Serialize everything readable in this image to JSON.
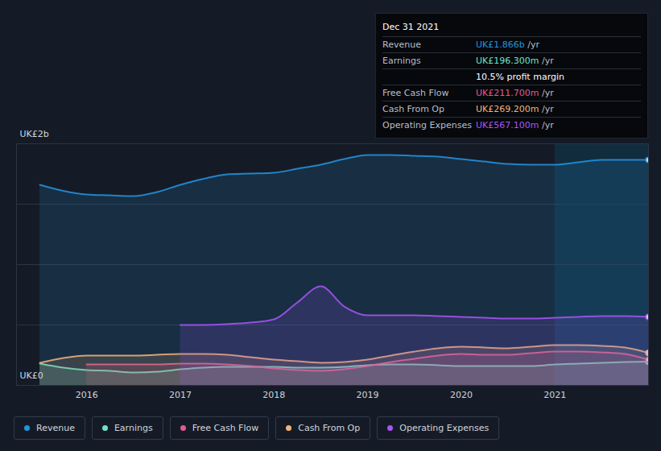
{
  "chart_data": {
    "type": "line",
    "x": [
      2015.5,
      2015.75,
      2016,
      2016.25,
      2016.5,
      2016.75,
      2017,
      2017.25,
      2017.5,
      2017.75,
      2018,
      2018.25,
      2018.5,
      2018.75,
      2019,
      2019.25,
      2019.5,
      2019.75,
      2020,
      2020.25,
      2020.5,
      2020.75,
      2021,
      2021.25,
      2021.5,
      2021.75,
      2022
    ],
    "xlim": [
      2015.25,
      2022
    ],
    "xticks": [
      2016,
      2017,
      2018,
      2019,
      2020,
      2021
    ],
    "ylim": [
      0,
      2
    ],
    "yticks": [
      {
        "value": 0,
        "label": "UK£0"
      },
      {
        "value": 0.5,
        "label": null
      },
      {
        "value": 1,
        "label": null
      },
      {
        "value": 1.5,
        "label": null
      },
      {
        "value": 2,
        "label": "UK£2b"
      }
    ],
    "grid": true,
    "series": [
      {
        "name": "Revenue",
        "color": "#2394df",
        "values": [
          1.66,
          1.61,
          1.58,
          1.573,
          1.567,
          1.6,
          1.66,
          1.71,
          1.747,
          1.753,
          1.76,
          1.793,
          1.827,
          1.873,
          1.907,
          1.907,
          1.9,
          1.893,
          1.873,
          1.853,
          1.833,
          1.827,
          1.827,
          1.847,
          1.867,
          1.867,
          1.866
        ]
      },
      {
        "name": "Earnings",
        "color": "#6fe3c7",
        "values": [
          0.18,
          0.147,
          0.127,
          0.12,
          0.107,
          0.113,
          0.133,
          0.147,
          0.153,
          0.153,
          0.153,
          0.147,
          0.147,
          0.153,
          0.167,
          0.173,
          0.173,
          0.167,
          0.16,
          0.16,
          0.16,
          0.16,
          0.173,
          0.18,
          0.187,
          0.193,
          0.1963
        ]
      },
      {
        "name": "Free Cash Flow",
        "color": "#e05b8f",
        "values": [
          null,
          null,
          0.173,
          0.173,
          0.173,
          0.173,
          0.18,
          0.18,
          0.173,
          0.16,
          0.14,
          0.127,
          0.12,
          0.133,
          0.16,
          0.193,
          0.22,
          0.247,
          0.26,
          0.253,
          0.253,
          0.267,
          0.28,
          0.28,
          0.273,
          0.26,
          0.2117
        ]
      },
      {
        "name": "Cash From Op",
        "color": "#f0b37a",
        "values": [
          0.187,
          0.227,
          0.247,
          0.247,
          0.247,
          0.253,
          0.26,
          0.26,
          0.253,
          0.233,
          0.213,
          0.2,
          0.187,
          0.193,
          0.213,
          0.247,
          0.28,
          0.307,
          0.32,
          0.313,
          0.307,
          0.32,
          0.333,
          0.333,
          0.327,
          0.313,
          0.2692
        ]
      },
      {
        "name": "Operating Expenses",
        "color": "#a855f7",
        "values": [
          null,
          null,
          null,
          null,
          null,
          null,
          0.5,
          0.5,
          0.507,
          0.52,
          0.547,
          0.687,
          0.82,
          0.653,
          0.58,
          0.58,
          0.58,
          0.573,
          0.567,
          0.56,
          0.553,
          0.553,
          0.56,
          0.567,
          0.573,
          0.573,
          0.5671
        ]
      }
    ],
    "legend": "bottom",
    "annotation": {
      "title": "Dec 31 2021",
      "rows": [
        {
          "label": "Revenue",
          "text": "UK£1.866b",
          "unit": "/yr"
        },
        {
          "label": "Earnings",
          "text": "UK£196.300m",
          "unit": "/yr"
        },
        {
          "text": "10.5% profit margin"
        },
        {
          "label": "Free Cash Flow",
          "text": "UK£211.700m",
          "unit": "/yr"
        },
        {
          "label": "Cash From Op",
          "text": "UK£269.200m",
          "unit": "/yr"
        },
        {
          "label": "Operating Expenses",
          "text": "UK£567.100m",
          "unit": "/yr"
        }
      ]
    }
  }
}
